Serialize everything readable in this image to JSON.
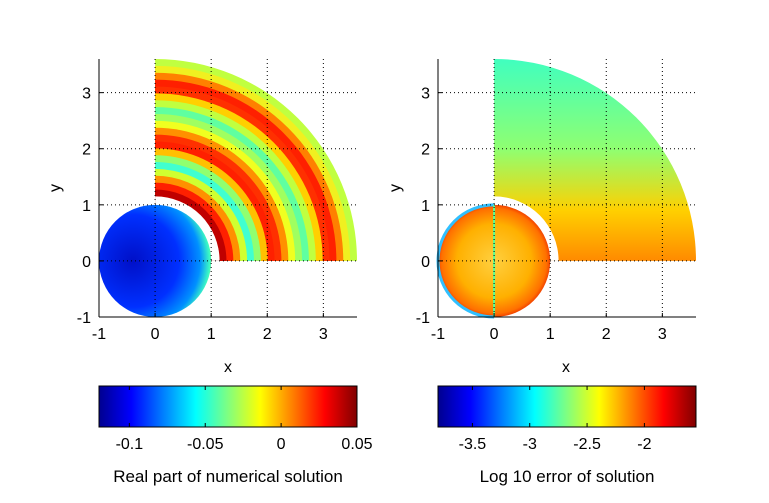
{
  "chart_data": [
    {
      "type": "heatmap",
      "panel": "left",
      "xlabel": "x",
      "ylabel": "y",
      "xlim": [
        -1,
        3.6
      ],
      "ylim": [
        -1,
        3.6
      ],
      "xticks": [
        -1,
        0,
        1,
        2,
        3
      ],
      "yticks": [
        -1,
        0,
        1,
        2,
        3
      ],
      "grid": true,
      "colormap": "jet",
      "colorbar": {
        "label": "Real part of numerical solution",
        "range": [
          -0.12,
          0.05
        ],
        "ticks": [
          -0.1,
          -0.05,
          0,
          0.05
        ],
        "tick_labels": [
          "-0.1",
          "-0.05",
          "0",
          "0.05"
        ],
        "placement": "bottom"
      }
    },
    {
      "type": "heatmap",
      "panel": "right",
      "xlabel": "x",
      "ylabel": "y",
      "xlim": [
        -1,
        3.6
      ],
      "ylim": [
        -1,
        3.6
      ],
      "xticks": [
        -1,
        0,
        1,
        2,
        3
      ],
      "yticks": [
        -1,
        0,
        1,
        2,
        3
      ],
      "grid": true,
      "colormap": "jet",
      "colorbar": {
        "label": "Log 10 error of solution",
        "range": [
          -3.8,
          -1.55
        ],
        "ticks": [
          -3.5,
          -3,
          -2.5,
          -2
        ],
        "tick_labels": [
          "-3.5",
          "-3",
          "-2.5",
          "-2"
        ],
        "placement": "bottom"
      }
    }
  ],
  "colors": {
    "background": "#ffffff",
    "axis": "#000000"
  }
}
